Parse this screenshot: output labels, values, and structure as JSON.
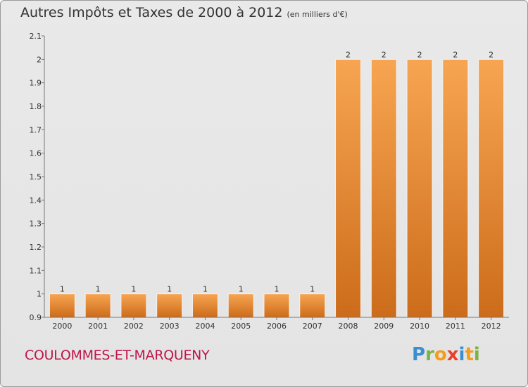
{
  "header": {
    "title": "Autres Impôts et Taxes de 2000 à 2012",
    "subtitle": "(en milliers d'€)"
  },
  "footer": {
    "commune": "COULOMMES-ET-MARQUENY",
    "brand_letters": [
      "P",
      "r",
      "o",
      "x",
      "i",
      "t",
      "i"
    ],
    "brand_colors": [
      "#3a8fd0",
      "#7cb342",
      "#f29d1e",
      "#e8402a",
      "#3a8fd0",
      "#f29d1e",
      "#7cb342"
    ]
  },
  "chart_data": {
    "type": "bar",
    "categories": [
      "2000",
      "2001",
      "2002",
      "2003",
      "2004",
      "2005",
      "2006",
      "2007",
      "2008",
      "2009",
      "2010",
      "2011",
      "2012"
    ],
    "values": [
      1,
      1,
      1,
      1,
      1,
      1,
      1,
      1,
      2,
      2,
      2,
      2,
      2
    ],
    "data_labels": [
      "1",
      "1",
      "1",
      "1",
      "1",
      "1",
      "1",
      "1",
      "2",
      "2",
      "2",
      "2",
      "2"
    ],
    "ylim": [
      0.9,
      2.1
    ],
    "yticks": [
      0.9,
      1,
      1.1,
      1.2,
      1.3,
      1.4,
      1.5,
      1.6,
      1.7,
      1.8,
      1.9,
      2,
      2.1
    ],
    "ytick_labels": [
      "0.9",
      "1",
      "1.1",
      "1.2",
      "1.3",
      "1.4",
      "1.5",
      "1.6",
      "1.7",
      "1.8",
      "1.9",
      "2",
      "2.1"
    ],
    "grid": false,
    "bar_color_top": "#f7a552",
    "bar_color_bottom": "#cc6c1a"
  }
}
